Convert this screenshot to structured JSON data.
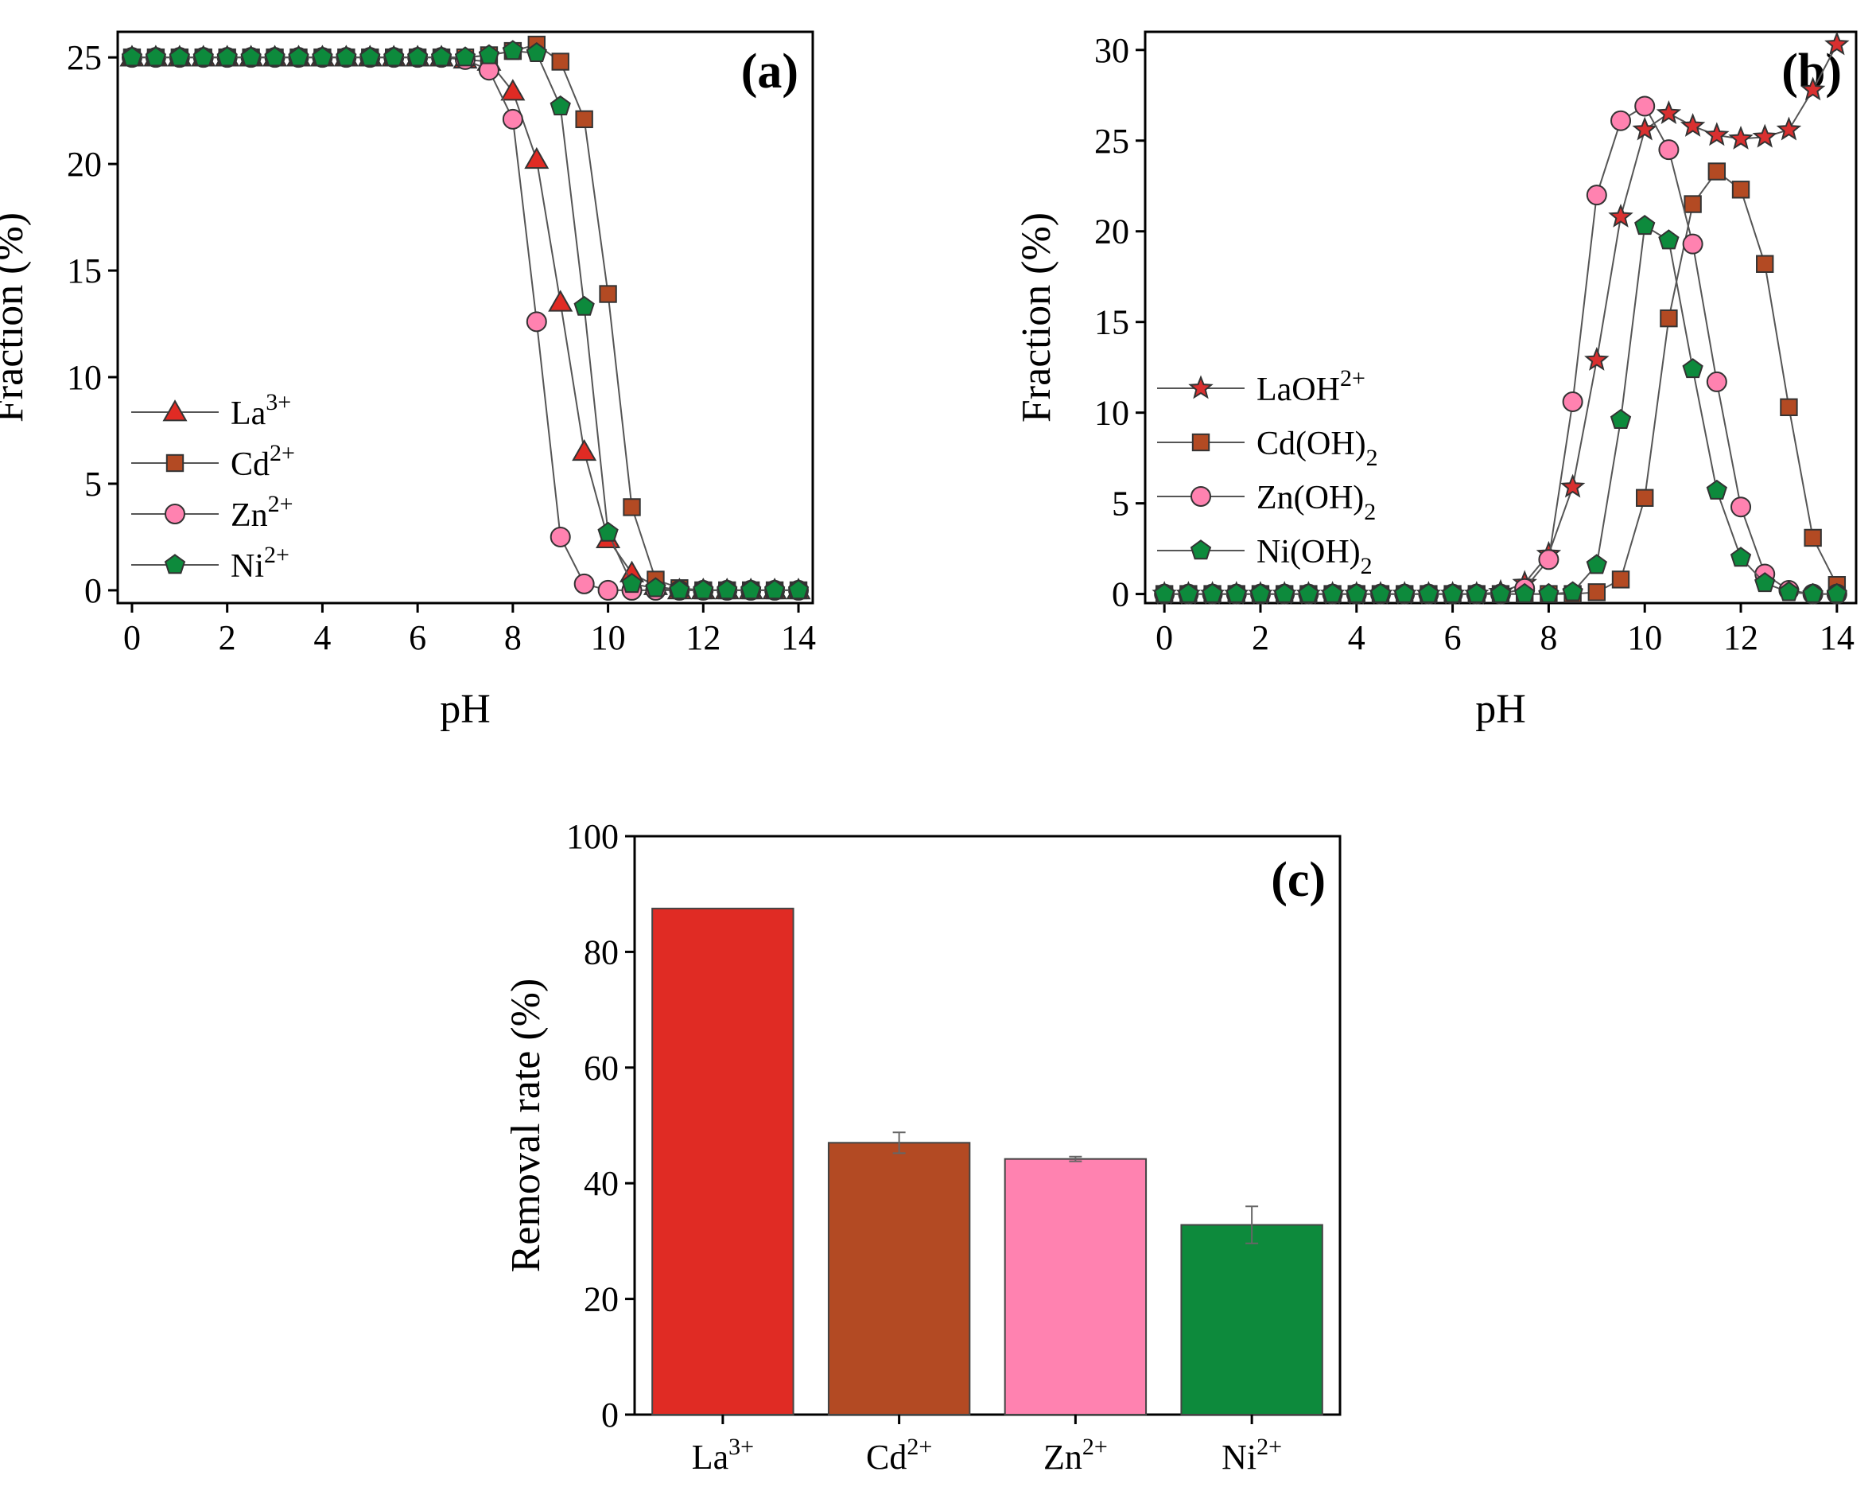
{
  "colors": {
    "La": "#e02b24",
    "Cd": "#b34a23",
    "Zn": "#ff82b0",
    "Ni": "#0d8a3c",
    "LaOH_marker": "#d93030"
  },
  "chart_data": [
    {
      "id": "a",
      "type": "line",
      "panel_label": "(a)",
      "xlabel": "pH",
      "ylabel": "Fraction (%)",
      "xlim": [
        -0.3,
        14.3
      ],
      "ylim": [
        -0.6,
        26.2
      ],
      "xticks": [
        0,
        2,
        4,
        6,
        8,
        10,
        12,
        14
      ],
      "yticks": [
        0,
        5,
        10,
        15,
        20,
        25
      ],
      "legend_position": "center-left",
      "series": [
        {
          "name": "La",
          "label": "La",
          "sup": "3+",
          "sub": "",
          "marker": "triangle",
          "color": "#e02b24",
          "x": [
            0,
            0.5,
            1,
            1.5,
            2,
            2.5,
            3,
            3.5,
            4,
            4.5,
            5,
            5.5,
            6,
            6.5,
            7,
            7.5,
            8,
            8.5,
            9,
            9.5,
            10,
            10.5,
            11,
            11.5,
            12,
            12.5,
            13,
            13.5,
            14
          ],
          "y": [
            25,
            25,
            25,
            25,
            25,
            25,
            25,
            25,
            25,
            25,
            25,
            25,
            25,
            25,
            24.9,
            24.8,
            23.4,
            20.2,
            13.5,
            6.5,
            2.4,
            0.8,
            0.2,
            0,
            0,
            0,
            0,
            0,
            0
          ]
        },
        {
          "name": "Cd",
          "label": "Cd",
          "sup": "2+",
          "sub": "",
          "marker": "square",
          "color": "#b34a23",
          "x": [
            0,
            0.5,
            1,
            1.5,
            2,
            2.5,
            3,
            3.5,
            4,
            4.5,
            5,
            5.5,
            6,
            6.5,
            7,
            7.5,
            8,
            8.5,
            9,
            9.5,
            10,
            10.5,
            11,
            11.5,
            12,
            12.5,
            13,
            13.5,
            14
          ],
          "y": [
            25,
            25,
            25,
            25,
            25,
            25,
            25,
            25,
            25,
            25,
            25,
            25,
            25,
            25,
            25,
            25.1,
            25.3,
            25.6,
            24.8,
            22.1,
            13.9,
            3.9,
            0.5,
            0.1,
            0,
            0,
            0,
            0,
            0
          ]
        },
        {
          "name": "Zn",
          "label": "Zn",
          "sup": "2+",
          "sub": "",
          "marker": "circle",
          "color": "#ff82b0",
          "x": [
            0,
            0.5,
            1,
            1.5,
            2,
            2.5,
            3,
            3.5,
            4,
            4.5,
            5,
            5.5,
            6,
            6.5,
            7,
            7.5,
            8,
            8.5,
            9,
            9.5,
            10,
            10.5,
            11,
            11.5,
            12,
            12.5,
            13,
            13.5,
            14
          ],
          "y": [
            25,
            25,
            25,
            25,
            25,
            25,
            25,
            25,
            25,
            25,
            25,
            25,
            25,
            25,
            24.9,
            24.4,
            22.1,
            12.6,
            2.5,
            0.3,
            0,
            0,
            0,
            0,
            0,
            0,
            0,
            0,
            0
          ]
        },
        {
          "name": "Ni",
          "label": "Ni",
          "sup": "2+",
          "sub": "",
          "marker": "pentagon",
          "color": "#0d8a3c",
          "x": [
            0,
            0.5,
            1,
            1.5,
            2,
            2.5,
            3,
            3.5,
            4,
            4.5,
            5,
            5.5,
            6,
            6.5,
            7,
            7.5,
            8,
            8.5,
            9,
            9.5,
            10,
            10.5,
            11,
            11.5,
            12,
            12.5,
            13,
            13.5,
            14
          ],
          "y": [
            25,
            25,
            25,
            25,
            25,
            25,
            25,
            25,
            25,
            25,
            25,
            25,
            25,
            25,
            25,
            25.1,
            25.3,
            25.2,
            22.7,
            13.3,
            2.7,
            0.3,
            0.1,
            0,
            0,
            0,
            0,
            0,
            0
          ]
        }
      ]
    },
    {
      "id": "b",
      "type": "line",
      "panel_label": "(b)",
      "xlabel": "pH",
      "ylabel": "Fraction (%)",
      "xlim": [
        -0.4,
        14.4
      ],
      "ylim": [
        -0.5,
        31.0
      ],
      "xticks": [
        0,
        2,
        4,
        6,
        8,
        10,
        12,
        14
      ],
      "yticks": [
        0,
        5,
        10,
        15,
        20,
        25,
        30
      ],
      "legend_position": "center-left",
      "series": [
        {
          "name": "LaOH",
          "label": "LaOH",
          "sup": "2+",
          "sub": "",
          "marker": "star",
          "color": "#d93030",
          "x": [
            0,
            0.5,
            1,
            1.5,
            2,
            2.5,
            3,
            3.5,
            4,
            4.5,
            5,
            5.5,
            6,
            6.5,
            7,
            7.5,
            8,
            8.5,
            9,
            9.5,
            10,
            10.5,
            11,
            11.5,
            12,
            12.5,
            13,
            13.5,
            14
          ],
          "y": [
            0,
            0,
            0,
            0,
            0,
            0,
            0,
            0,
            0,
            0,
            0,
            0,
            0,
            0,
            0.1,
            0.6,
            2.2,
            5.9,
            12.9,
            20.8,
            25.6,
            26.5,
            25.8,
            25.3,
            25.1,
            25.2,
            25.6,
            27.8,
            30.3
          ]
        },
        {
          "name": "Cd(OH)2",
          "label": "Cd(OH)",
          "sup": "",
          "sub": "2",
          "marker": "square",
          "color": "#b34a23",
          "x": [
            0,
            0.5,
            1,
            1.5,
            2,
            2.5,
            3,
            3.5,
            4,
            4.5,
            5,
            5.5,
            6,
            6.5,
            7,
            7.5,
            8,
            8.5,
            9,
            9.5,
            10,
            10.5,
            11,
            11.5,
            12,
            12.5,
            13,
            13.5,
            14
          ],
          "y": [
            0,
            0,
            0,
            0,
            0,
            0,
            0,
            0,
            0,
            0,
            0,
            0,
            0,
            0,
            0,
            0,
            0,
            0,
            0.1,
            0.8,
            5.3,
            15.2,
            21.5,
            23.3,
            22.3,
            18.2,
            10.3,
            3.1,
            0.5
          ]
        },
        {
          "name": "Zn(OH)2",
          "label": "Zn(OH)",
          "sup": "",
          "sub": "2",
          "marker": "circle",
          "color": "#ff82b0",
          "x": [
            0,
            0.5,
            1,
            1.5,
            2,
            2.5,
            3,
            3.5,
            4,
            4.5,
            5,
            5.5,
            6,
            6.5,
            7,
            7.5,
            8,
            8.5,
            9,
            9.5,
            10,
            10.5,
            11,
            11.5,
            12,
            12.5,
            13,
            13.5,
            14
          ],
          "y": [
            0,
            0,
            0,
            0,
            0,
            0,
            0,
            0,
            0,
            0,
            0,
            0,
            0,
            0,
            0,
            0.3,
            1.9,
            10.6,
            22.0,
            26.1,
            26.9,
            24.5,
            19.3,
            11.7,
            4.8,
            1.1,
            0.2,
            0,
            0
          ]
        },
        {
          "name": "Ni(OH)2",
          "label": "Ni(OH)",
          "sup": "",
          "sub": "2",
          "marker": "pentagon",
          "color": "#0d8a3c",
          "x": [
            0,
            0.5,
            1,
            1.5,
            2,
            2.5,
            3,
            3.5,
            4,
            4.5,
            5,
            5.5,
            6,
            6.5,
            7,
            7.5,
            8,
            8.5,
            9,
            9.5,
            10,
            10.5,
            11,
            11.5,
            12,
            12.5,
            13,
            13.5,
            14
          ],
          "y": [
            0,
            0,
            0,
            0,
            0,
            0,
            0,
            0,
            0,
            0,
            0,
            0,
            0,
            0,
            0,
            0,
            0,
            0.1,
            1.6,
            9.6,
            20.3,
            19.5,
            12.4,
            5.7,
            2.0,
            0.6,
            0.1,
            0,
            0
          ]
        }
      ]
    },
    {
      "id": "c",
      "type": "bar",
      "panel_label": "(c)",
      "xlabel": "",
      "ylabel": "Removal rate (%)",
      "ylim": [
        0,
        100
      ],
      "yticks": [
        0,
        20,
        40,
        60,
        80,
        100
      ],
      "categories": [
        {
          "base": "La",
          "sup": "3+"
        },
        {
          "base": "Cd",
          "sup": "2+"
        },
        {
          "base": "Zn",
          "sup": "2+"
        },
        {
          "base": "Ni",
          "sup": "2+"
        }
      ],
      "values": [
        87.5,
        47.0,
        44.2,
        32.8
      ],
      "errors": [
        0,
        1.8,
        0.4,
        3.2
      ],
      "colors": [
        "#e02b24",
        "#b34a23",
        "#ff82b0",
        "#0d8a3c"
      ]
    }
  ]
}
